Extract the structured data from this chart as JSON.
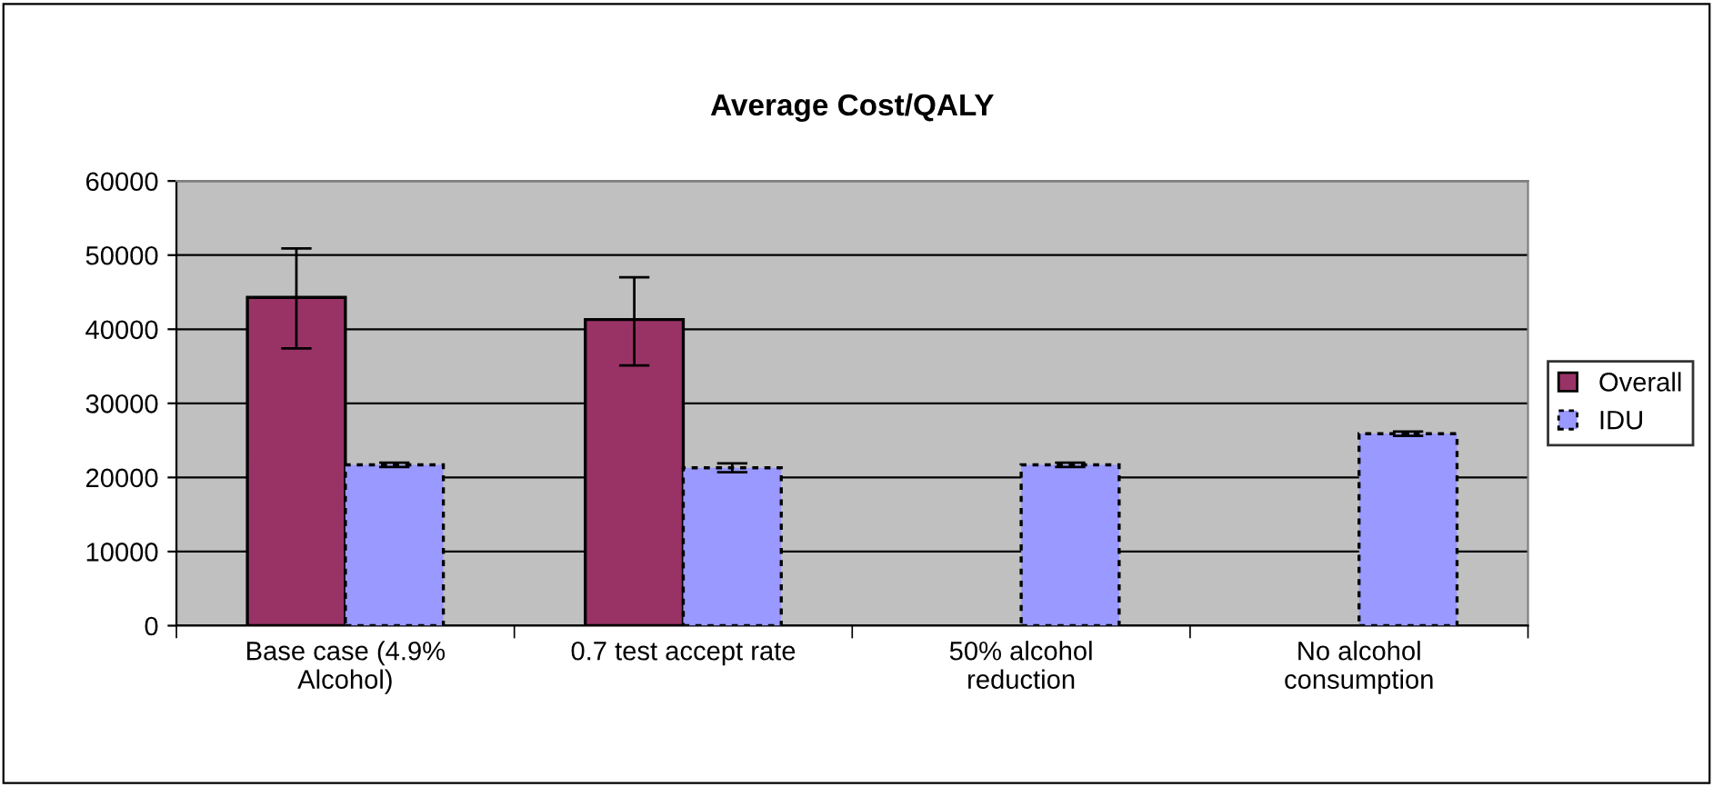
{
  "chart_data": {
    "type": "bar",
    "title": "Average Cost/QALY",
    "categories": [
      "Base case (4.9%\nAlcohol)",
      "0.7 test accept rate",
      "50% alcohol\nreduction",
      "No alcohol\nconsumption"
    ],
    "series": [
      {
        "name": "Overall",
        "color": "#993366",
        "values": [
          44300,
          41300,
          null,
          null
        ],
        "errors": [
          [
            37400,
            50900
          ],
          [
            35100,
            47000
          ],
          null,
          null
        ],
        "line_style": "solid"
      },
      {
        "name": "IDU",
        "color": "#9999ff",
        "values": [
          21700,
          21300,
          21700,
          25900
        ],
        "errors": [
          [
            21400,
            22000
          ],
          [
            20700,
            21900
          ],
          [
            21400,
            22000
          ],
          [
            25600,
            26200
          ]
        ],
        "line_style": "dashed"
      }
    ],
    "ylim": [
      0,
      60000
    ],
    "yticks": [
      0,
      10000,
      20000,
      30000,
      40000,
      50000,
      60000
    ],
    "grid": "y",
    "legend": "right"
  }
}
